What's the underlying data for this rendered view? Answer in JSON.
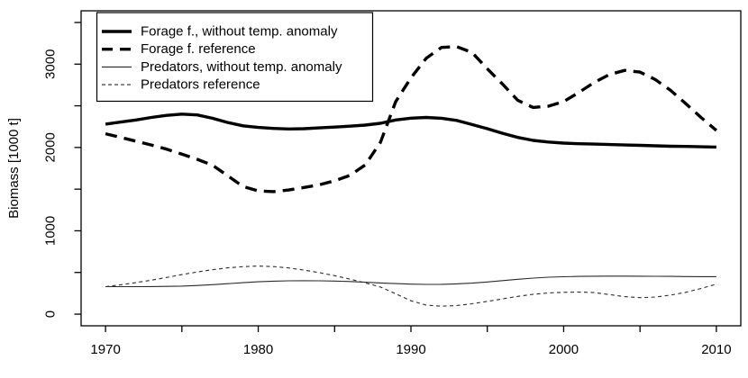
{
  "figure": {
    "background_color": "#ffffff",
    "frame_color": "#000000"
  },
  "chart_data": {
    "type": "line",
    "title": "",
    "xlabel": "",
    "ylabel": "Biomass [1000 t]",
    "xlim": [
      1970,
      2010
    ],
    "ylim": [
      0,
      3500
    ],
    "grid": false,
    "legend_position": "top-left",
    "x_ticks": [
      1970,
      1975,
      1980,
      1985,
      1990,
      1995,
      2000,
      2005,
      2010
    ],
    "x_major_ticks": [
      1970,
      1980,
      1990,
      2000,
      2010
    ],
    "y_ticks": [
      0,
      500,
      1000,
      1500,
      2000,
      2500,
      3000,
      3500
    ],
    "y_major_ticks": [
      0,
      1000,
      2000,
      3000
    ],
    "x": [
      1970,
      1971,
      1972,
      1973,
      1974,
      1975,
      1976,
      1977,
      1978,
      1979,
      1980,
      1981,
      1982,
      1983,
      1984,
      1985,
      1986,
      1987,
      1988,
      1989,
      1990,
      1991,
      1992,
      1993,
      1994,
      1995,
      1996,
      1997,
      1998,
      1999,
      2000,
      2001,
      2002,
      2003,
      2004,
      2005,
      2006,
      2007,
      2008,
      2009,
      2010
    ],
    "series": [
      {
        "name": "Forage f., without temp. anomaly",
        "line_style": "solid",
        "line_weight": "thick",
        "color": "#000000",
        "values": [
          2280,
          2305,
          2330,
          2360,
          2385,
          2400,
          2390,
          2350,
          2300,
          2260,
          2240,
          2228,
          2222,
          2225,
          2235,
          2245,
          2255,
          2268,
          2290,
          2330,
          2352,
          2360,
          2350,
          2325,
          2275,
          2225,
          2170,
          2120,
          2085,
          2065,
          2052,
          2045,
          2040,
          2035,
          2030,
          2025,
          2020,
          2015,
          2012,
          2008,
          2005
        ]
      },
      {
        "name": "Forage f. reference",
        "line_style": "dashed",
        "line_weight": "thick",
        "color": "#000000",
        "values": [
          2165,
          2120,
          2075,
          2030,
          1980,
          1920,
          1858,
          1788,
          1660,
          1532,
          1478,
          1470,
          1490,
          1520,
          1552,
          1600,
          1665,
          1790,
          2060,
          2550,
          2835,
          3070,
          3200,
          3210,
          3140,
          2945,
          2760,
          2565,
          2480,
          2495,
          2550,
          2660,
          2780,
          2875,
          2925,
          2905,
          2815,
          2685,
          2525,
          2360,
          2205
        ]
      },
      {
        "name": "Predators, without temp. anomaly",
        "line_style": "solid",
        "line_weight": "thin",
        "color": "#2a2a2a",
        "values": [
          330,
          330,
          330,
          331,
          333,
          336,
          344,
          354,
          365,
          377,
          388,
          396,
          400,
          401,
          400,
          397,
          391,
          383,
          374,
          366,
          360,
          357,
          358,
          363,
          372,
          386,
          402,
          418,
          432,
          443,
          449,
          453,
          455,
          456,
          456,
          455,
          454,
          453,
          451,
          450,
          450
        ]
      },
      {
        "name": "Predators reference",
        "line_style": "dashed",
        "line_weight": "thin",
        "color": "#2a2a2a",
        "values": [
          330,
          352,
          378,
          408,
          440,
          474,
          506,
          533,
          556,
          570,
          577,
          571,
          554,
          529,
          498,
          462,
          420,
          375,
          325,
          245,
          160,
          108,
          95,
          103,
          125,
          153,
          183,
          213,
          238,
          254,
          262,
          265,
          258,
          235,
          210,
          198,
          205,
          228,
          262,
          308,
          360
        ]
      }
    ]
  }
}
